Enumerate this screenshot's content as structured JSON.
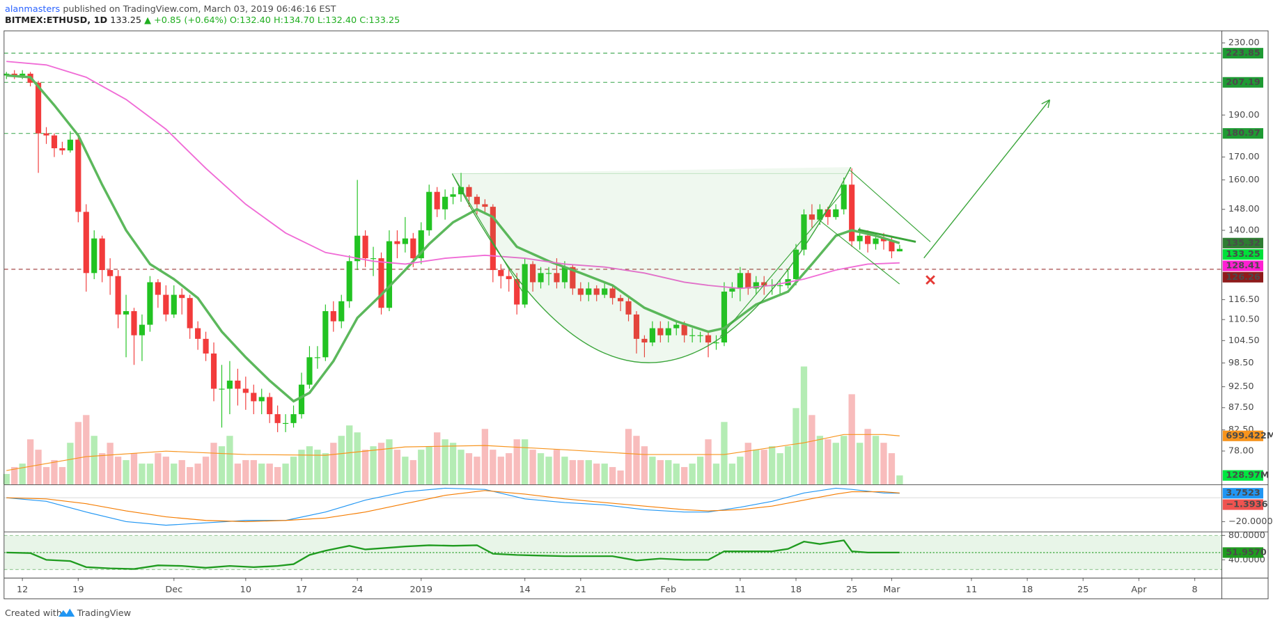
{
  "header": {
    "author": "alanmasters",
    "published": "published on TradingView.com, March 03, 2019 06:46:16 EST",
    "symbol": "BITMEX:ETHUSD, 1D",
    "last": "133.25",
    "change": "▲ +0.85 (+0.64%)",
    "ohlc": "O:132.40 H:134.70 L:132.40 C:133.25"
  },
  "footer": {
    "created": "Created with",
    "brand": "TradingView"
  },
  "chart_data": {
    "type": "candlestick",
    "log_scale": true,
    "xlim": [
      -0.3,
      152.4
    ],
    "xticks": [
      {
        "value": 2,
        "label": "12"
      },
      {
        "value": 9,
        "label": "19"
      },
      {
        "value": 21,
        "label": "Dec"
      },
      {
        "value": 30,
        "label": "10"
      },
      {
        "value": 37,
        "label": "17"
      },
      {
        "value": 44,
        "label": "24"
      },
      {
        "value": 52,
        "label": "2019"
      },
      {
        "value": 65,
        "label": "14"
      },
      {
        "value": 72,
        "label": "21"
      },
      {
        "value": 83,
        "label": "Feb"
      },
      {
        "value": 92,
        "label": "11"
      },
      {
        "value": 99,
        "label": "18"
      },
      {
        "value": 106,
        "label": "25"
      },
      {
        "value": 111,
        "label": "Mar"
      },
      {
        "value": 121,
        "label": "11"
      },
      {
        "value": 128,
        "label": "18"
      },
      {
        "value": 135,
        "label": "25"
      },
      {
        "value": 142,
        "label": "Apr"
      },
      {
        "value": 149,
        "label": "8"
      }
    ],
    "ylim": [
      71.4,
      237.5
    ],
    "yticks": [
      {
        "value": 230,
        "label": "230.00"
      },
      {
        "value": 190,
        "label": "190.00"
      },
      {
        "value": 170,
        "label": "170.00"
      },
      {
        "value": 160,
        "label": "160.00"
      },
      {
        "value": 148,
        "label": "148.00"
      },
      {
        "value": 140,
        "label": "140.00"
      },
      {
        "value": 116.5,
        "label": "116.50"
      },
      {
        "value": 110.5,
        "label": "110.50"
      },
      {
        "value": 104.5,
        "label": "104.50"
      },
      {
        "value": 98.5,
        "label": "98.50"
      },
      {
        "value": 92.5,
        "label": "92.50"
      },
      {
        "value": 87.5,
        "label": "87.50"
      },
      {
        "value": 82.5,
        "label": "82.50"
      },
      {
        "value": 78,
        "label": "78.00"
      }
    ],
    "up_color": "#22c322",
    "down_color": "#f23b3b",
    "open": [
      211,
      212,
      211,
      212,
      207,
      181,
      180,
      174,
      173,
      178,
      147,
      125,
      137,
      126,
      124,
      112,
      113,
      106,
      109,
      122,
      118,
      112,
      118,
      117,
      108,
      105,
      101,
      92,
      92,
      94,
      92,
      91,
      89,
      90,
      86,
      84,
      84,
      86,
      93,
      100,
      100,
      113,
      110,
      116,
      129,
      138,
      130,
      130,
      114,
      136,
      135,
      137,
      130,
      140,
      155,
      148,
      153,
      154,
      157,
      153,
      150,
      149,
      126,
      124,
      123,
      115,
      128,
      122,
      125,
      125,
      122,
      127,
      120,
      118,
      120,
      118,
      120,
      117,
      116,
      112,
      105,
      104,
      108,
      106,
      108,
      109,
      106,
      106,
      106,
      104,
      104,
      119,
      120,
      125,
      120,
      122,
      121,
      121,
      121,
      123,
      133,
      146,
      144,
      148,
      145,
      148,
      158,
      136,
      138,
      135,
      137,
      136,
      132.4
    ],
    "high": [
      213,
      214,
      214,
      213,
      208,
      184,
      181,
      177,
      182,
      179,
      150,
      140,
      138,
      130,
      126,
      118,
      114,
      112,
      124,
      123,
      121,
      121,
      120,
      118,
      110,
      107,
      104,
      98,
      99,
      97,
      95,
      93,
      92,
      91,
      88,
      86,
      88,
      96,
      103,
      103,
      115,
      116,
      118,
      131,
      160,
      140,
      134,
      132,
      140,
      140,
      145,
      139,
      143,
      158,
      157,
      156,
      157,
      163,
      158,
      154,
      152,
      150,
      128,
      126,
      125,
      130,
      129,
      127,
      127,
      130,
      129,
      128,
      122,
      122,
      121,
      122,
      121,
      118,
      117,
      113,
      106,
      110,
      110,
      110,
      110,
      110,
      108,
      107,
      107,
      106,
      122,
      122,
      127,
      126,
      124,
      124,
      123,
      123,
      126,
      135,
      148,
      150,
      150,
      149,
      150,
      161,
      165,
      141,
      140,
      139,
      139,
      138,
      134.7
    ],
    "low": [
      209,
      209,
      209,
      205,
      163,
      176,
      170,
      171,
      172,
      143,
      119,
      123,
      122,
      118,
      108,
      100,
      98,
      99,
      107,
      114,
      110,
      111,
      112,
      105,
      102,
      99,
      89,
      83,
      86,
      88,
      87,
      86,
      86,
      84,
      82,
      82,
      83,
      85,
      92,
      97,
      99,
      107,
      108,
      114,
      126,
      127,
      124,
      112,
      113,
      130,
      132,
      127,
      128,
      138,
      145,
      144,
      150,
      151,
      149,
      146,
      146,
      122,
      120,
      119,
      112,
      114,
      119,
      120,
      121,
      120,
      120,
      118,
      116,
      116,
      116,
      117,
      115,
      113,
      110,
      101,
      100,
      103,
      104,
      104,
      106,
      104,
      104,
      104,
      100,
      102,
      103,
      117,
      116,
      118,
      118,
      118,
      118,
      118,
      120,
      121,
      131,
      141,
      142,
      142,
      144,
      146,
      134,
      133,
      132,
      133,
      133,
      130,
      132.4
    ],
    "close": [
      212,
      211,
      212,
      207,
      181,
      180,
      174,
      173,
      178,
      147,
      125,
      137,
      126,
      124,
      112,
      113,
      106,
      109,
      122,
      118,
      112,
      118,
      117,
      108,
      105,
      101,
      92,
      92,
      94,
      92,
      91,
      89,
      90,
      86,
      84,
      84,
      86,
      93,
      100,
      100,
      113,
      110,
      116,
      129,
      138,
      130,
      130,
      114,
      136,
      135,
      137,
      130,
      140,
      155,
      148,
      153,
      154,
      157,
      153,
      150,
      149,
      126,
      124,
      123,
      115,
      128,
      122,
      125,
      125,
      122,
      127,
      120,
      118,
      120,
      118,
      120,
      117,
      116,
      112,
      105,
      104,
      108,
      106,
      108,
      109,
      106,
      106,
      106,
      104,
      104,
      119,
      120,
      125,
      120,
      122,
      121,
      121,
      121,
      123,
      133,
      146,
      144,
      148,
      145,
      148,
      158,
      136,
      138,
      135,
      137,
      136,
      132.4,
      133.25
    ],
    "series": [
      {
        "color": "#5cb85c",
        "x": [
          0,
          3,
          6,
          9,
          12,
          15,
          18,
          21,
          24,
          27,
          30,
          33,
          36,
          38,
          41,
          44,
          47,
          50,
          53,
          56,
          59,
          61,
          64,
          68,
          72,
          76,
          80,
          84,
          88,
          90,
          94,
          98,
          101,
          104,
          106,
          109,
          112
        ],
        "values": [
          211,
          210,
          195,
          180,
          158,
          140,
          128,
          123,
          117,
          107,
          100,
          94,
          89,
          91,
          99,
          111,
          118,
          126,
          135,
          143,
          148,
          145,
          134,
          129,
          125,
          121,
          114,
          110,
          107,
          108,
          115,
          119,
          128,
          138,
          140,
          138,
          135.32
        ]
      },
      {
        "color": "#f06bd6",
        "x": [
          0,
          5,
          10,
          15,
          20,
          25,
          30,
          35,
          40,
          46,
          50,
          55,
          60,
          65,
          70,
          75,
          80,
          85,
          88,
          92,
          96,
          100,
          104,
          106,
          108,
          112
        ],
        "values": [
          219,
          217,
          210,
          198,
          183,
          165,
          150,
          139,
          132,
          129,
          128,
          130,
          131,
          130,
          128,
          127,
          125,
          122,
          121,
          120,
          121,
          123,
          126,
          127,
          128,
          128.41
        ]
      }
    ],
    "levels": [
      {
        "value": 223.85,
        "color": "#1e9a33"
      },
      {
        "value": 207.19,
        "color": "#1e9a33"
      },
      {
        "value": 180.97,
        "color": "#1e9a33"
      },
      {
        "value": 126.26,
        "color": "#8e1b1b"
      }
    ],
    "markers": [
      {
        "value": 135.32,
        "color": "#2e7d32"
      },
      {
        "value": 133.25,
        "color": "#00e03a"
      },
      {
        "value": 128.41,
        "color": "#ff1fd2"
      }
    ],
    "volume": {
      "vlim": [
        0,
        6540
      ],
      "up_color": "#b4ecb4",
      "down_color": "#f8bcbc",
      "values": [
        150,
        250,
        300,
        650,
        500,
        250,
        350,
        250,
        600,
        900,
        1000,
        700,
        450,
        600,
        400,
        350,
        450,
        300,
        300,
        450,
        400,
        300,
        350,
        250,
        300,
        400,
        600,
        550,
        700,
        300,
        350,
        350,
        300,
        300,
        250,
        300,
        400,
        500,
        550,
        500,
        450,
        600,
        700,
        850,
        750,
        500,
        550,
        600,
        650,
        500,
        400,
        350,
        500,
        550,
        750,
        650,
        600,
        500,
        450,
        400,
        800,
        500,
        400,
        450,
        650,
        650,
        500,
        450,
        400,
        500,
        400,
        350,
        350,
        350,
        300,
        300,
        250,
        200,
        800,
        700,
        550,
        400,
        350,
        350,
        300,
        250,
        300,
        400,
        650,
        300,
        900,
        300,
        400,
        600,
        500,
        500,
        550,
        450,
        550,
        1100,
        1700,
        1000,
        700,
        650,
        600,
        700,
        1300,
        600,
        800,
        700,
        600,
        450,
        128.97
      ],
      "ma": {
        "color": "#f7941d",
        "x": [
          0,
          10,
          20,
          30,
          40,
          50,
          60,
          70,
          80,
          90,
          100,
          105,
          110,
          112
        ],
        "values": [
          200,
          400,
          480,
          430,
          420,
          540,
          560,
          500,
          430,
          430,
          600,
          720,
          720,
          699.422
        ]
      },
      "labels": [
        {
          "value": 699.422,
          "label": "699.422M",
          "color": "#f7941d"
        },
        {
          "value": 128.97,
          "label": "128.97M",
          "color": "#00e640"
        }
      ]
    },
    "macd": {
      "ylim": [
        -28.2,
        10.5
      ],
      "yticks": [
        {
          "value": -20,
          "label": "−20.0000"
        }
      ],
      "series": [
        {
          "color": "#2196f3",
          "x": [
            0,
            5,
            10,
            15,
            20,
            25,
            30,
            35,
            40,
            45,
            50,
            55,
            60,
            65,
            70,
            75,
            80,
            85,
            88,
            92,
            96,
            100,
            104,
            106,
            110,
            112
          ],
          "values": [
            0,
            -3,
            -12,
            -20,
            -23,
            -21,
            -19,
            -19,
            -12,
            -2,
            5,
            8,
            7,
            -1,
            -4,
            -6,
            -10,
            -12,
            -12,
            -8,
            -3,
            4,
            8,
            7,
            4,
            3.7523
          ]
        },
        {
          "color": "#f57c00",
          "x": [
            0,
            5,
            10,
            15,
            20,
            25,
            30,
            35,
            40,
            45,
            50,
            55,
            60,
            65,
            70,
            75,
            80,
            85,
            88,
            92,
            96,
            100,
            104,
            106,
            110,
            112
          ],
          "values": [
            0,
            -1,
            -5,
            -11,
            -16,
            -19,
            -20,
            -19,
            -17,
            -12,
            -5,
            2,
            6,
            3,
            -1,
            -4,
            -7,
            -10,
            -11,
            -10,
            -7,
            -2,
            3,
            5,
            5,
            4
          ]
        }
      ],
      "labels": [
        {
          "value": 3.7523,
          "color": "#2196f3"
        },
        {
          "value": -1.3936,
          "label": "−1.3936",
          "color": "#ef5350"
        }
      ]
    },
    "rsi": {
      "ylim": [
        10.7,
        85.3
      ],
      "yticks": [
        {
          "value": 80,
          "label": "80.0000"
        },
        {
          "value": 40,
          "label": "40.0000"
        }
      ],
      "series": [
        {
          "color": "#1f9b1f",
          "x": [
            0,
            3,
            5,
            8,
            10,
            13,
            16,
            19,
            22,
            25,
            28,
            31,
            34,
            36,
            38,
            40,
            43,
            45,
            48,
            50,
            53,
            56,
            59,
            61,
            64,
            67,
            70,
            73,
            76,
            79,
            82,
            85,
            88,
            90,
            93,
            96,
            98,
            100,
            102,
            104,
            105,
            106,
            108,
            110,
            112
          ],
          "values": [
            52,
            51,
            40,
            38,
            28,
            26,
            25,
            31,
            30,
            27,
            30,
            28,
            30,
            33,
            48,
            55,
            63,
            57,
            60,
            62,
            64,
            63,
            64,
            50,
            48,
            47,
            46,
            46,
            46,
            39,
            42,
            40,
            40,
            54,
            54,
            54,
            58,
            70,
            66,
            70,
            72,
            54,
            52,
            52,
            51.957
          ]
        }
      ],
      "labels": [
        {
          "value": 51.957,
          "label": "51.9570",
          "color": "#1f9b1f"
        }
      ]
    }
  }
}
